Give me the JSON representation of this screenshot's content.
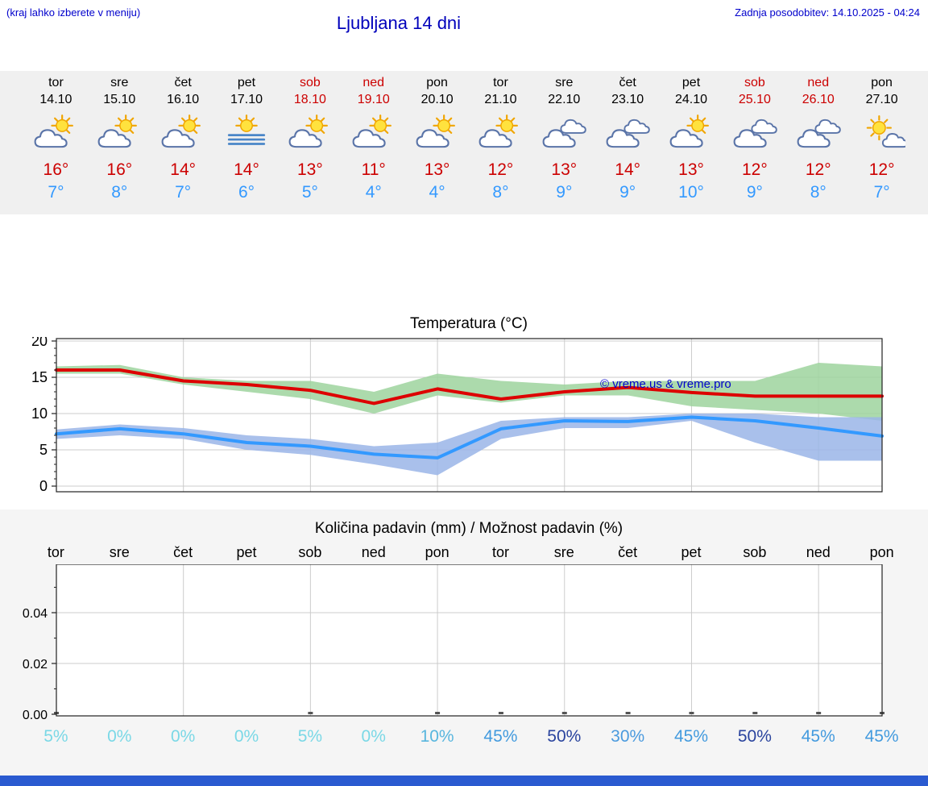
{
  "header": {
    "note": "(kraj lahko izberete v meniju)",
    "title": "Ljubljana 14 dni",
    "last_update": "Zadnja posodobitev: 14.10.2025 - 04:24"
  },
  "watermark": "© vreme.us & vreme.pro",
  "colors": {
    "link_blue": "#0000cc",
    "high_red": "#cc0000",
    "low_blue": "#3399ff",
    "max_line": "#dd0000",
    "min_line": "#3399ff",
    "max_band": "#9ed49e",
    "min_band": "#9ab5e8",
    "grid": "#cccccc",
    "frame": "#222222",
    "footer": "#2a5ad0"
  },
  "forecast_days": [
    {
      "day": "tor",
      "date": "14.10",
      "weekend": false,
      "icon": "partly-cloudy",
      "high": "16°",
      "low": "7°"
    },
    {
      "day": "sre",
      "date": "15.10",
      "weekend": false,
      "icon": "partly-cloudy",
      "high": "16°",
      "low": "8°"
    },
    {
      "day": "čet",
      "date": "16.10",
      "weekend": false,
      "icon": "partly-cloudy",
      "high": "14°",
      "low": "7°"
    },
    {
      "day": "pet",
      "date": "17.10",
      "weekend": false,
      "icon": "fog",
      "high": "14°",
      "low": "6°"
    },
    {
      "day": "sob",
      "date": "18.10",
      "weekend": true,
      "icon": "partly-cloudy",
      "high": "13°",
      "low": "5°"
    },
    {
      "day": "ned",
      "date": "19.10",
      "weekend": true,
      "icon": "partly-cloudy",
      "high": "11°",
      "low": "4°"
    },
    {
      "day": "pon",
      "date": "20.10",
      "weekend": false,
      "icon": "partly-cloudy",
      "high": "13°",
      "low": "4°"
    },
    {
      "day": "tor",
      "date": "21.10",
      "weekend": false,
      "icon": "partly-cloudy",
      "high": "12°",
      "low": "8°"
    },
    {
      "day": "sre",
      "date": "22.10",
      "weekend": false,
      "icon": "cloudy",
      "high": "13°",
      "low": "9°"
    },
    {
      "day": "čet",
      "date": "23.10",
      "weekend": false,
      "icon": "cloudy",
      "high": "14°",
      "low": "9°"
    },
    {
      "day": "pet",
      "date": "24.10",
      "weekend": false,
      "icon": "partly-cloudy",
      "high": "13°",
      "low": "10°"
    },
    {
      "day": "sob",
      "date": "25.10",
      "weekend": true,
      "icon": "cloudy",
      "high": "12°",
      "low": "9°"
    },
    {
      "day": "ned",
      "date": "26.10",
      "weekend": true,
      "icon": "cloudy",
      "high": "12°",
      "low": "8°"
    },
    {
      "day": "pon",
      "date": "27.10",
      "weekend": false,
      "icon": "mostly-sunny",
      "high": "12°",
      "low": "7°"
    }
  ],
  "chart_data": [
    {
      "type": "line",
      "title": "Temperatura (°C)",
      "x": [
        "tor",
        "sre",
        "čet",
        "pet",
        "sob",
        "ned",
        "pon",
        "tor",
        "sre",
        "čet",
        "pet",
        "sob",
        "ned",
        "pon"
      ],
      "ylim": [
        -1,
        21
      ],
      "yticks": [
        0,
        5,
        10,
        15,
        20
      ],
      "grid": "on",
      "series": [
        {
          "name": "max_temp",
          "values": [
            16,
            16,
            14.5,
            14,
            13.2,
            11.4,
            13.4,
            12,
            13,
            13.6,
            12.9,
            12.4,
            12.4,
            12.4
          ]
        },
        {
          "name": "min_temp",
          "values": [
            7.2,
            7.9,
            7.2,
            6,
            5.5,
            4.4,
            3.9,
            7.9,
            9,
            8.9,
            9.5,
            9,
            8,
            6.9
          ]
        },
        {
          "name": "max_band_upper",
          "values": [
            16.5,
            16.7,
            15,
            14.5,
            14.5,
            13,
            15.5,
            14.5,
            14,
            14.5,
            14.5,
            14.5,
            17,
            16.5
          ]
        },
        {
          "name": "max_band_lower",
          "values": [
            15.5,
            15.5,
            14,
            13,
            12,
            10,
            12.5,
            11.5,
            12.5,
            12.5,
            11,
            10.5,
            10,
            9
          ]
        },
        {
          "name": "min_band_upper",
          "values": [
            7.8,
            8.5,
            8,
            7,
            6.5,
            5.5,
            6,
            9,
            9.5,
            9.5,
            10,
            10,
            9.5,
            9.5
          ]
        },
        {
          "name": "min_band_lower",
          "values": [
            6.5,
            7,
            6.5,
            5,
            4.3,
            3,
            1.5,
            6.5,
            8,
            8,
            9,
            6,
            3.5,
            3.5
          ]
        }
      ]
    },
    {
      "type": "bar",
      "title": "Količina padavin (mm) / Možnost padavin (%)",
      "x": [
        "tor",
        "sre",
        "čet",
        "pet",
        "sob",
        "ned",
        "pon",
        "tor",
        "sre",
        "čet",
        "pet",
        "sob",
        "ned",
        "pon"
      ],
      "ylim": [
        0,
        0.059
      ],
      "yticks": [
        0,
        0.02,
        0.04
      ],
      "grid": "on",
      "values": [
        0,
        0,
        0,
        0,
        0,
        0,
        0,
        0,
        0,
        0,
        0,
        0,
        0,
        0
      ],
      "probabilities": [
        {
          "label": "5%",
          "color": "#7ad8e6"
        },
        {
          "label": "0%",
          "color": "#7ad8e6"
        },
        {
          "label": "0%",
          "color": "#7ad8e6"
        },
        {
          "label": "0%",
          "color": "#7ad8e6"
        },
        {
          "label": "5%",
          "color": "#7ad8e6"
        },
        {
          "label": "0%",
          "color": "#7ad8e6"
        },
        {
          "label": "10%",
          "color": "#58b6de"
        },
        {
          "label": "45%",
          "color": "#429ade"
        },
        {
          "label": "50%",
          "color": "#2a449e"
        },
        {
          "label": "30%",
          "color": "#4a9ade"
        },
        {
          "label": "45%",
          "color": "#429ade"
        },
        {
          "label": "50%",
          "color": "#2a449e"
        },
        {
          "label": "45%",
          "color": "#429ade"
        },
        {
          "label": "45%",
          "color": "#429ade"
        }
      ]
    }
  ]
}
